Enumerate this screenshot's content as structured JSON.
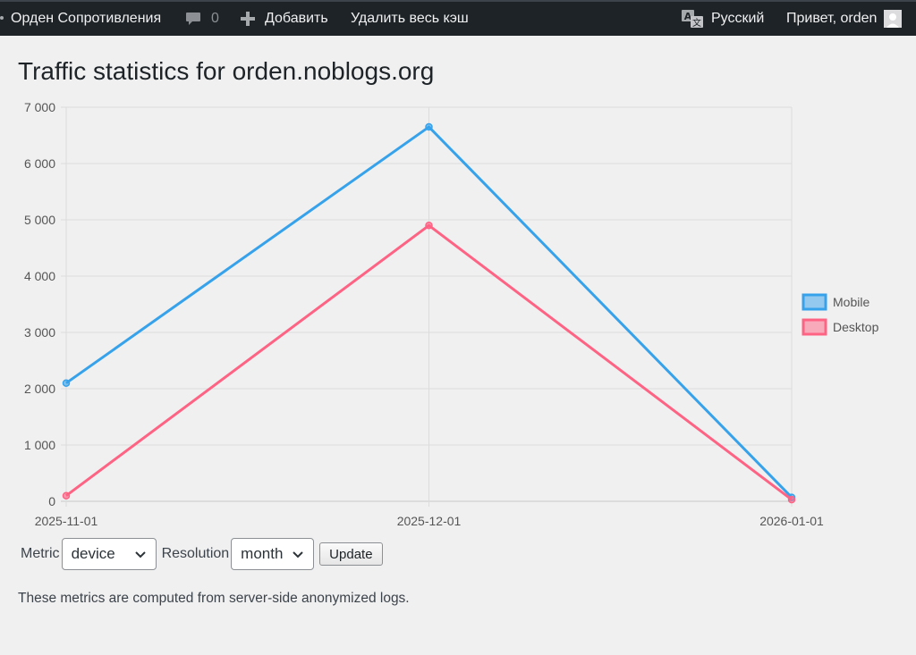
{
  "adminbar": {
    "site_name": "Орден Сопротивления",
    "comments_count": "0",
    "add_new": "Добавить",
    "purge_cache": "Удалить весь кэш",
    "language": "Русский",
    "greeting": "Привет, orden"
  },
  "page": {
    "title": "Traffic statistics for orden.noblogs.org",
    "footnote": "These metrics are computed from server-side anonymized logs."
  },
  "controls": {
    "metric_label": "Metric",
    "metric_value": "device",
    "resolution_label": "Resolution",
    "resolution_value": "month",
    "update_label": "Update"
  },
  "chart_data": {
    "type": "line",
    "x": [
      "2025-11-01",
      "2025-12-01",
      "2026-01-01"
    ],
    "series": [
      {
        "name": "Mobile",
        "values": [
          2100,
          6650,
          70
        ],
        "color": "#36a2eb"
      },
      {
        "name": "Desktop",
        "values": [
          100,
          4900,
          30
        ],
        "color": "#ff6384"
      }
    ],
    "ylim": [
      0,
      7000
    ],
    "yticks": [
      0,
      1000,
      2000,
      3000,
      4000,
      5000,
      6000,
      7000
    ],
    "ytick_labels": [
      "0",
      "1 000",
      "2 000",
      "3 000",
      "4 000",
      "5 000",
      "6 000",
      "7 000"
    ],
    "grid": true,
    "legend_position": "right",
    "xlabel": "",
    "ylabel": ""
  }
}
